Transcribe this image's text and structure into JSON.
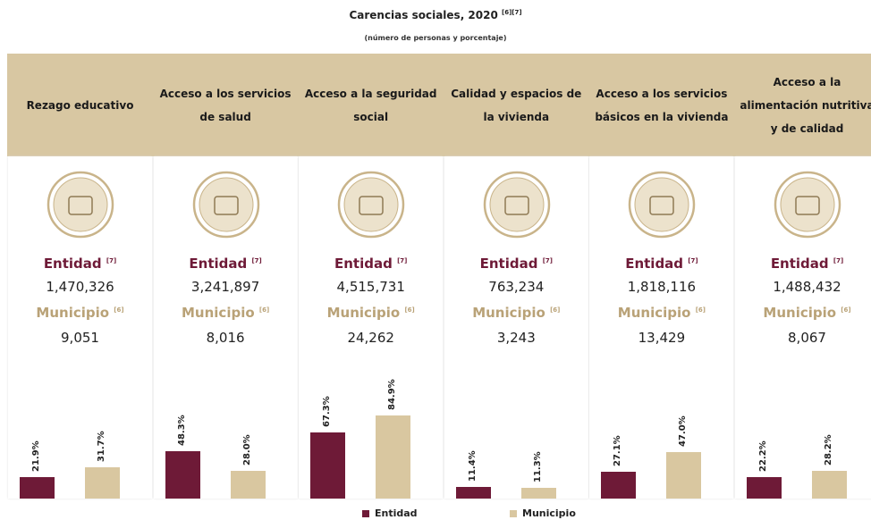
{
  "title": "Carencias sociales, 2020",
  "title_note": "[6][7]",
  "subtitle": "(número de personas y porcentaje)",
  "entity_label": "Entidad",
  "entity_note": "[7]",
  "municipality_label": "Municipio",
  "municipality_note": "[6]",
  "legend": [
    {
      "name": "Entidad",
      "color": "#6e1a37"
    },
    {
      "name": "Municipio",
      "color": "#d9c7a0"
    }
  ],
  "columns": [
    {
      "header": "Rezago educativo",
      "entidad": "1,470,326",
      "municipio": "9,051",
      "values": [
        21.9,
        31.7
      ],
      "value_labels": [
        "21.9%",
        "31.7%"
      ]
    },
    {
      "header": "Acceso a los servicios de salud",
      "entidad": "3,241,897",
      "municipio": "8,016",
      "values": [
        48.3,
        28.0
      ],
      "value_labels": [
        "48.3%",
        "28.0%"
      ]
    },
    {
      "header": "Acceso a la seguridad social",
      "entidad": "4,515,731",
      "municipio": "24,262",
      "values": [
        67.3,
        84.9
      ],
      "value_labels": [
        "67.3%",
        "84.9%"
      ]
    },
    {
      "header": "Calidad y espacios de la vivienda",
      "entidad": "763,234",
      "municipio": "3,243",
      "values": [
        11.4,
        11.3
      ],
      "value_labels": [
        "11.4%",
        "11.3%"
      ]
    },
    {
      "header": "Acceso a los servicios básicos en la vivienda",
      "entidad": "1,818,116",
      "municipio": "13,429",
      "values": [
        27.1,
        47.0
      ],
      "value_labels": [
        "27.1%",
        "47.0%"
      ]
    },
    {
      "header": "Acceso a la alimentación nutritiva y de calidad",
      "entidad": "1,488,432",
      "municipio": "8,067",
      "values": [
        22.2,
        28.2
      ],
      "value_labels": [
        "22.2%",
        "28.2%"
      ]
    }
  ]
}
